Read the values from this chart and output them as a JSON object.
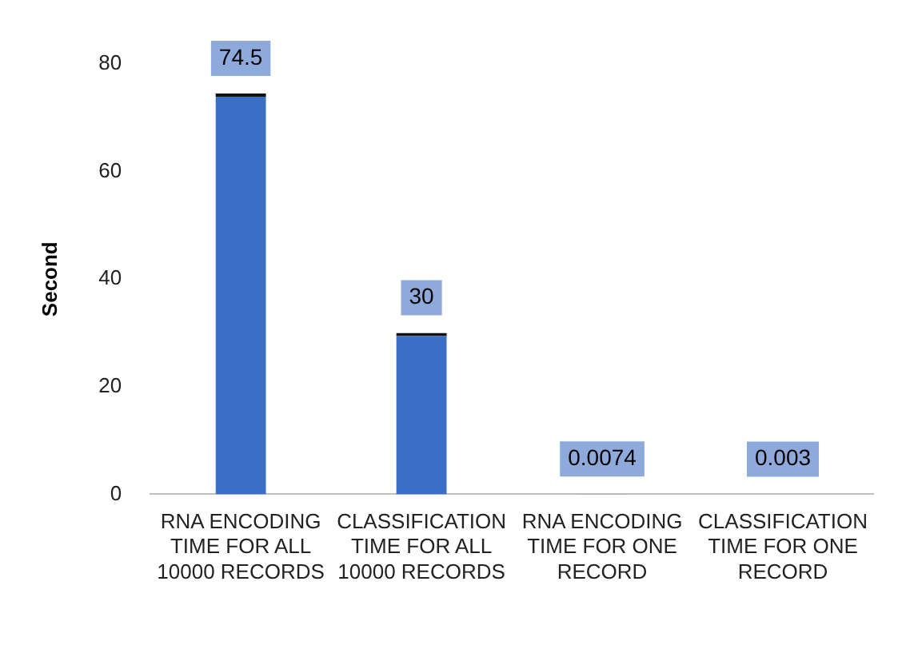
{
  "chart_data": {
    "type": "bar",
    "ylabel": "Second",
    "categories": [
      "RNA ENCODING TIME FOR ALL 10000 RECORDS",
      "CLASSIFICATION TIME FOR ALL 10000 RECORDS",
      "RNA ENCODING TIME FOR ONE RECORD",
      "CLASSIFICATION TIME FOR ONE RECORD"
    ],
    "values": [
      74.5,
      30,
      0.0074,
      0.003
    ],
    "color": "#3b6ec6",
    "ylim": [
      0,
      80
    ],
    "yticks": [
      0,
      20,
      40,
      60,
      80
    ],
    "grid": false,
    "legend": false,
    "data_labels": true
  }
}
